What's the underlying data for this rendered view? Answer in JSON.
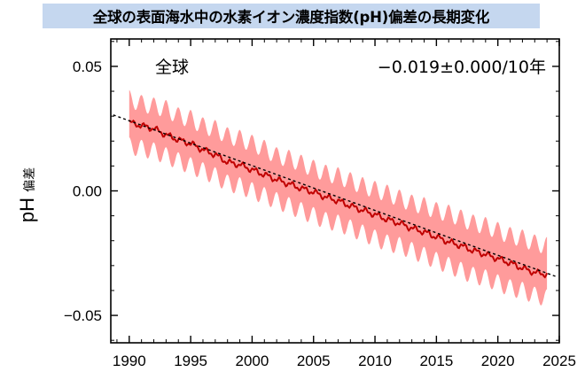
{
  "title": "全球の表面海水中の水素イオン濃度指数(pH)偏差の長期変化",
  "chart_data": {
    "type": "line",
    "ylabel_main": "pH",
    "ylabel_sub": "偏差",
    "region_label": "全球",
    "trend_label": "−0.019±0.000/10年",
    "xlim": [
      1988.5,
      2025
    ],
    "ylim": [
      -0.061,
      0.061
    ],
    "xticks": [
      1990,
      1995,
      2000,
      2005,
      2010,
      2015,
      2020,
      2025
    ],
    "xtick_labels": [
      "1990",
      "1995",
      "2000",
      "2005",
      "2010",
      "2015",
      "2020",
      "2025"
    ],
    "yticks": [
      0.05,
      0.0,
      -0.05
    ],
    "ytick_labels": [
      "0.05",
      "0.00",
      "−0.05"
    ],
    "grid": false,
    "trend_line": {
      "x": [
        1988.7,
        2024.8
      ],
      "y": [
        0.0305,
        -0.0345
      ]
    },
    "series": [
      {
        "role": "monthly mean",
        "x": [
          1990,
          1991,
          1992,
          1993,
          1994,
          1995,
          1996,
          1997,
          1998,
          1999,
          2000,
          2001,
          2002,
          2003,
          2004,
          2005,
          2006,
          2007,
          2008,
          2009,
          2010,
          2011,
          2012,
          2013,
          2014,
          2015,
          2016,
          2017,
          2018,
          2019,
          2020,
          2021,
          2022,
          2023,
          2024
        ],
        "y": [
          0.0275,
          0.0262,
          0.025,
          0.0225,
          0.0205,
          0.019,
          0.0165,
          0.0145,
          0.0115,
          0.0105,
          0.0085,
          0.0065,
          0.0045,
          0.0028,
          0.001,
          -0.0005,
          -0.0025,
          -0.004,
          -0.006,
          -0.0078,
          -0.0095,
          -0.0115,
          -0.013,
          -0.015,
          -0.0165,
          -0.0185,
          -0.0205,
          -0.022,
          -0.024,
          -0.0255,
          -0.0272,
          -0.029,
          -0.031,
          -0.0328,
          -0.0335
        ],
        "color": "#c00000"
      },
      {
        "role": "uncertainty range",
        "x": [
          1990,
          1991,
          1992,
          1993,
          1994,
          1995,
          1996,
          1997,
          1998,
          1999,
          2000,
          2001,
          2002,
          2003,
          2004,
          2005,
          2006,
          2007,
          2008,
          2009,
          2010,
          2011,
          2012,
          2013,
          2014,
          2015,
          2016,
          2017,
          2018,
          2019,
          2020,
          2021,
          2022,
          2023,
          2024
        ],
        "upper": [
          0.037,
          0.035,
          0.034,
          0.033,
          0.03,
          0.029,
          0.026,
          0.025,
          0.022,
          0.021,
          0.019,
          0.017,
          0.014,
          0.013,
          0.011,
          0.009,
          0.007,
          0.006,
          0.004,
          0.002,
          0.0005,
          -0.001,
          -0.003,
          -0.005,
          -0.006,
          -0.008,
          -0.009,
          -0.011,
          -0.013,
          -0.014,
          -0.016,
          -0.018,
          -0.019,
          -0.021,
          -0.022
        ],
        "lower": [
          0.018,
          0.017,
          0.016,
          0.014,
          0.012,
          0.01,
          0.008,
          0.006,
          0.003,
          0.002,
          0.0,
          -0.002,
          -0.004,
          -0.006,
          -0.008,
          -0.01,
          -0.012,
          -0.013,
          -0.015,
          -0.017,
          -0.019,
          -0.021,
          -0.022,
          -0.024,
          -0.026,
          -0.028,
          -0.03,
          -0.032,
          -0.034,
          -0.035,
          -0.037,
          -0.039,
          -0.04,
          -0.042,
          -0.043
        ],
        "color": "#ff9b9b"
      }
    ]
  }
}
